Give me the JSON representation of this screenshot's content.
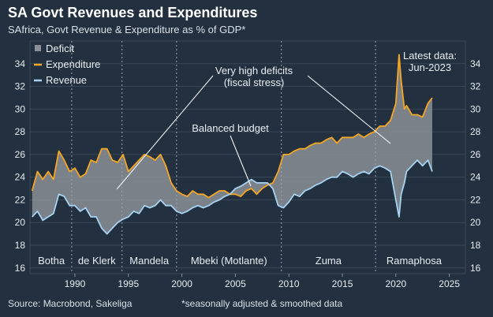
{
  "header": {
    "title": "SA Govt Revenues and Expenditures",
    "subtitle": "SAfrica, Govt Revenue & Expenditure as % of GDP*"
  },
  "footer": {
    "source": "Source: Macrobond, Sakeliga",
    "note": "*seasonally adjusted & smoothed data"
  },
  "chart_data": {
    "type": "line",
    "xlim": [
      1985.8,
      2026.5
    ],
    "ylim": [
      15.5,
      36
    ],
    "y_ticks": [
      16,
      18,
      20,
      22,
      24,
      26,
      28,
      30,
      32,
      34
    ],
    "x_ticks": [
      1990,
      1995,
      2000,
      2005,
      2010,
      2015,
      2020,
      2025
    ],
    "grid": true,
    "legend_position": "top-left",
    "legend": [
      {
        "name": "Deficit",
        "kind": "area",
        "color": "#8a8f97"
      },
      {
        "name": "Expenditure",
        "kind": "line",
        "color": "#f5a623"
      },
      {
        "name": "Revenue",
        "kind": "line",
        "color": "#a6d3f2"
      }
    ],
    "series": [
      {
        "name": "Expenditure",
        "color": "#f5a623",
        "x": [
          1986,
          1986.5,
          1987,
          1987.5,
          1988,
          1988.5,
          1989,
          1989.5,
          1990,
          1990.5,
          1991,
          1991.5,
          1992,
          1992.5,
          1993,
          1993.5,
          1994,
          1994.5,
          1995,
          1995.5,
          1996,
          1996.5,
          1997,
          1997.5,
          1998,
          1998.5,
          1999,
          1999.5,
          2000,
          2000.5,
          2001,
          2001.5,
          2002,
          2002.5,
          2003,
          2003.5,
          2004,
          2004.5,
          2005,
          2005.5,
          2006,
          2006.5,
          2007,
          2007.5,
          2008,
          2008.5,
          2009,
          2009.5,
          2010,
          2010.5,
          2011,
          2011.5,
          2012,
          2012.5,
          2013,
          2013.5,
          2014,
          2014.5,
          2015,
          2015.5,
          2016,
          2016.5,
          2017,
          2017.5,
          2018,
          2018.5,
          2019,
          2019.5,
          2020,
          2020.3,
          2020.5,
          2020.8,
          2021,
          2021.5,
          2022,
          2022.5,
          2023,
          2023.4
        ],
        "values": [
          22.8,
          24.5,
          23.8,
          24.5,
          23.8,
          26.3,
          25.5,
          24.5,
          24.8,
          24.0,
          24.3,
          25.5,
          25.3,
          26.5,
          26.5,
          25.5,
          25.3,
          26.0,
          24.5,
          25.0,
          25.5,
          26.0,
          25.8,
          25.5,
          26.0,
          25.0,
          23.5,
          22.8,
          22.5,
          22.3,
          22.8,
          22.5,
          22.5,
          22.2,
          22.5,
          22.8,
          22.8,
          22.5,
          22.5,
          22.3,
          22.8,
          23.0,
          22.5,
          23.0,
          23.3,
          23.5,
          24.5,
          26.0,
          26.0,
          26.3,
          26.5,
          26.5,
          26.8,
          27.0,
          27.0,
          27.3,
          27.5,
          27.0,
          27.5,
          27.5,
          27.5,
          27.8,
          27.5,
          27.8,
          28.0,
          28.5,
          28.5,
          29.0,
          30.5,
          34.8,
          32.5,
          30.0,
          30.3,
          29.5,
          29.5,
          29.3,
          30.5,
          31.0
        ]
      },
      {
        "name": "Revenue",
        "color": "#a6d3f2",
        "x": [
          1986,
          1986.5,
          1987,
          1987.5,
          1988,
          1988.5,
          1989,
          1989.5,
          1990,
          1990.5,
          1991,
          1991.5,
          1992,
          1992.5,
          1993,
          1993.5,
          1994,
          1994.5,
          1995,
          1995.5,
          1996,
          1996.5,
          1997,
          1997.5,
          1998,
          1998.5,
          1999,
          1999.5,
          2000,
          2000.5,
          2001,
          2001.5,
          2002,
          2002.5,
          2003,
          2003.5,
          2004,
          2004.5,
          2005,
          2005.5,
          2006,
          2006.5,
          2007,
          2007.5,
          2008,
          2008.5,
          2009,
          2009.5,
          2010,
          2010.5,
          2011,
          2011.5,
          2012,
          2012.5,
          2013,
          2013.5,
          2014,
          2014.5,
          2015,
          2015.5,
          2016,
          2016.5,
          2017,
          2017.5,
          2018,
          2018.5,
          2019,
          2019.5,
          2020,
          2020.3,
          2020.5,
          2020.8,
          2021,
          2021.5,
          2022,
          2022.5,
          2023,
          2023.4
        ],
        "values": [
          20.5,
          21.0,
          20.2,
          20.5,
          20.8,
          22.5,
          22.3,
          21.5,
          21.5,
          21.0,
          21.3,
          20.5,
          20.5,
          19.5,
          19.0,
          19.5,
          20.0,
          20.3,
          20.5,
          21.0,
          20.8,
          21.5,
          21.3,
          21.5,
          22.0,
          21.5,
          21.5,
          21.0,
          20.8,
          21.0,
          21.3,
          21.5,
          21.3,
          21.5,
          21.8,
          22.0,
          22.3,
          22.5,
          23.0,
          23.2,
          23.5,
          23.8,
          23.5,
          23.5,
          23.5,
          23.0,
          21.5,
          21.3,
          21.8,
          22.5,
          22.3,
          22.8,
          23.0,
          23.3,
          23.5,
          23.8,
          24.0,
          24.0,
          24.5,
          24.3,
          24.0,
          24.3,
          24.5,
          24.3,
          24.8,
          25.0,
          24.8,
          24.5,
          22.0,
          20.5,
          22.5,
          23.5,
          24.5,
          25.0,
          25.5,
          25.0,
          25.5,
          24.5
        ]
      }
    ],
    "eras": [
      {
        "label": "Botha",
        "start": 1985.8,
        "end": 1989.7
      },
      {
        "label": "de Klerk",
        "start": 1989.7,
        "end": 1994.4
      },
      {
        "label": "Mandela",
        "start": 1994.4,
        "end": 1999.5
      },
      {
        "label": "Mbeki (Motlante)",
        "start": 1999.5,
        "end": 2009.3
      },
      {
        "label": "Zuma",
        "start": 2009.3,
        "end": 2018.1
      },
      {
        "label": "Ramaphosa",
        "start": 2018.1,
        "end": 2026.5
      }
    ],
    "annotations": {
      "high_deficits": "Very high deficits\n(fiscal stress)",
      "balanced": "Balanced budget",
      "latest": "Latest data:\nJun-2023"
    }
  },
  "colors": {
    "background": "#22303f",
    "grid": "#3a4757",
    "deficit_fill": "#8a8f97"
  }
}
